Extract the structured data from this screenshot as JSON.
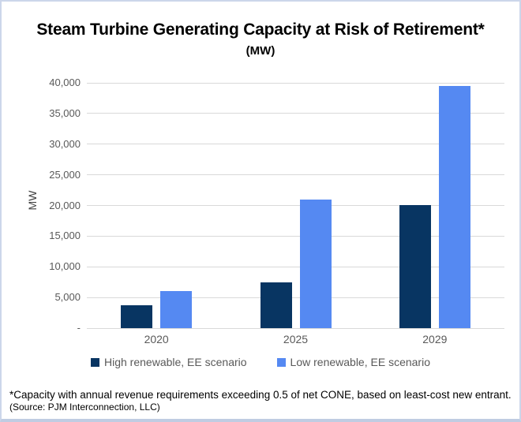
{
  "title": "Steam Turbine Generating Capacity at Risk of Retirement*",
  "subtitle": "(MW)",
  "footnote": {
    "line1": "*Capacity with annual revenue requirements exceeding 0.5 of net CONE, based on least-cost new entrant.",
    "line2": "(Source: PJM Interconnection, LLC)"
  },
  "colors": {
    "series_high": "#083562",
    "series_low": "#5589f2",
    "gridline": "#d9d9d9",
    "axis_text": "#595959",
    "frame_border": "#ccd6ea",
    "title_text": "#000000"
  },
  "chart_data": {
    "type": "bar",
    "title": "Steam Turbine Generating Capacity at Risk of Retirement*",
    "subtitle": "(MW)",
    "categories": [
      "2020",
      "2025",
      "2029"
    ],
    "series": [
      {
        "name": "High renewable, EE scenario",
        "color": "#083562",
        "values": [
          3700,
          7500,
          20000
        ]
      },
      {
        "name": "Low renewable, EE scenario",
        "color": "#5589f2",
        "values": [
          6000,
          21000,
          39500
        ]
      }
    ],
    "xlabel": "",
    "ylabel": "MW",
    "ylim": [
      0,
      40000
    ],
    "ytick_step": 5000,
    "ytick_labels_bottom_to_top": [
      "-",
      "5,000",
      "10,000",
      "15,000",
      "20,000",
      "25,000",
      "30,000",
      "35,000",
      "40,000"
    ],
    "grid": true,
    "legend_position": "bottom"
  }
}
